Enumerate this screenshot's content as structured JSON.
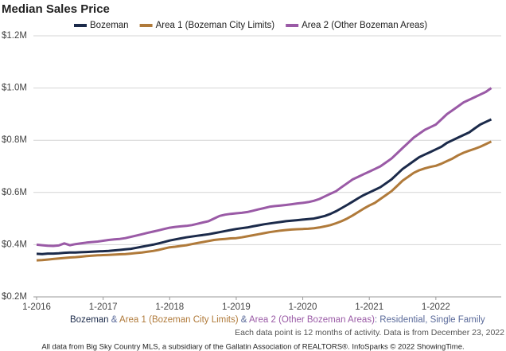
{
  "chart_data": {
    "type": "line",
    "title": "Median Sales Price",
    "categories": [
      "1-2016",
      null,
      null,
      null,
      null,
      null,
      null,
      null,
      null,
      null,
      null,
      null,
      "1-2017",
      null,
      null,
      null,
      null,
      null,
      null,
      null,
      null,
      null,
      null,
      null,
      "1-2018",
      null,
      null,
      null,
      null,
      null,
      null,
      null,
      null,
      null,
      null,
      null,
      "1-2019",
      null,
      null,
      null,
      null,
      null,
      null,
      null,
      null,
      null,
      null,
      null,
      "1-2020",
      null,
      null,
      null,
      null,
      null,
      null,
      null,
      null,
      null,
      null,
      null,
      "1-2021",
      null,
      null,
      null,
      null,
      null,
      null,
      null,
      null,
      null,
      null,
      null,
      "1-2022",
      null,
      null,
      null,
      null,
      null,
      null,
      null,
      null,
      null,
      null
    ],
    "series": [
      {
        "name": "Bozeman",
        "color": "#1b2a4a",
        "values": [
          365000,
          364000,
          366000,
          366000,
          367000,
          369000,
          370000,
          370000,
          371000,
          372000,
          373000,
          374000,
          375000,
          376000,
          378000,
          380000,
          382000,
          384000,
          388000,
          392000,
          396000,
          400000,
          405000,
          410000,
          416000,
          420000,
          424000,
          428000,
          431000,
          434000,
          437000,
          440000,
          444000,
          448000,
          452000,
          456000,
          460000,
          463000,
          466000,
          470000,
          474000,
          478000,
          481000,
          484000,
          487000,
          490000,
          492000,
          494000,
          496000,
          498000,
          500000,
          505000,
          510000,
          518000,
          528000,
          540000,
          552000,
          565000,
          578000,
          590000,
          600000,
          610000,
          620000,
          635000,
          650000,
          670000,
          690000,
          705000,
          720000,
          735000,
          745000,
          755000,
          765000,
          775000,
          790000,
          800000,
          810000,
          820000,
          830000,
          845000,
          860000,
          870000,
          880000
        ]
      },
      {
        "name": "Area 1 (Bozeman City Limits)",
        "color": "#b07a3a",
        "values": [
          340000,
          341000,
          343000,
          345000,
          347000,
          349000,
          351000,
          352000,
          354000,
          356000,
          358000,
          359000,
          360000,
          361000,
          362000,
          363000,
          364000,
          366000,
          368000,
          370000,
          373000,
          376000,
          380000,
          385000,
          390000,
          392000,
          395000,
          398000,
          402000,
          406000,
          410000,
          414000,
          418000,
          420000,
          422000,
          424000,
          425000,
          428000,
          432000,
          436000,
          440000,
          444000,
          448000,
          451000,
          454000,
          456000,
          458000,
          459000,
          460000,
          461000,
          463000,
          466000,
          470000,
          475000,
          482000,
          490000,
          500000,
          512000,
          525000,
          538000,
          550000,
          560000,
          575000,
          590000,
          605000,
          625000,
          645000,
          660000,
          675000,
          685000,
          692000,
          698000,
          702000,
          710000,
          720000,
          730000,
          742000,
          752000,
          760000,
          767000,
          775000,
          785000,
          795000
        ]
      },
      {
        "name": "Area 2 (Other Bozeman Areas)",
        "color": "#9a5aa6",
        "values": [
          400000,
          398000,
          396000,
          395000,
          397000,
          405000,
          398000,
          402000,
          405000,
          408000,
          410000,
          412000,
          415000,
          418000,
          420000,
          422000,
          425000,
          430000,
          435000,
          440000,
          445000,
          450000,
          455000,
          460000,
          465000,
          468000,
          470000,
          472000,
          475000,
          480000,
          485000,
          490000,
          500000,
          510000,
          515000,
          518000,
          520000,
          522000,
          525000,
          530000,
          535000,
          540000,
          545000,
          548000,
          550000,
          552000,
          555000,
          558000,
          560000,
          563000,
          568000,
          575000,
          585000,
          595000,
          605000,
          620000,
          635000,
          650000,
          660000,
          670000,
          680000,
          690000,
          700000,
          715000,
          730000,
          750000,
          770000,
          790000,
          810000,
          825000,
          840000,
          850000,
          860000,
          880000,
          900000,
          915000,
          930000,
          945000,
          955000,
          965000,
          975000,
          985000,
          1000000
        ]
      }
    ],
    "ylim": [
      200000,
      1200000
    ],
    "yticks": [
      {
        "value": 200000,
        "label": "$0.2M"
      },
      {
        "value": 400000,
        "label": "$0.4M"
      },
      {
        "value": 600000,
        "label": "$0.6M"
      },
      {
        "value": 800000,
        "label": "$0.8M"
      },
      {
        "value": 1000000,
        "label": "$1.0M"
      },
      {
        "value": 1200000,
        "label": "$1.2M"
      }
    ],
    "grid": true,
    "legend": "top",
    "caption": {
      "joiner": "&",
      "suffix": ": Residential, Single Family",
      "note": "Each data point is 12 months of activity. Data is from December 23, 2022",
      "source": "All data from Big Sky Country MLS, a subsidiary of the Gallatin Association of REALTORS®. InfoSparks © 2022 ShowingTime."
    }
  }
}
